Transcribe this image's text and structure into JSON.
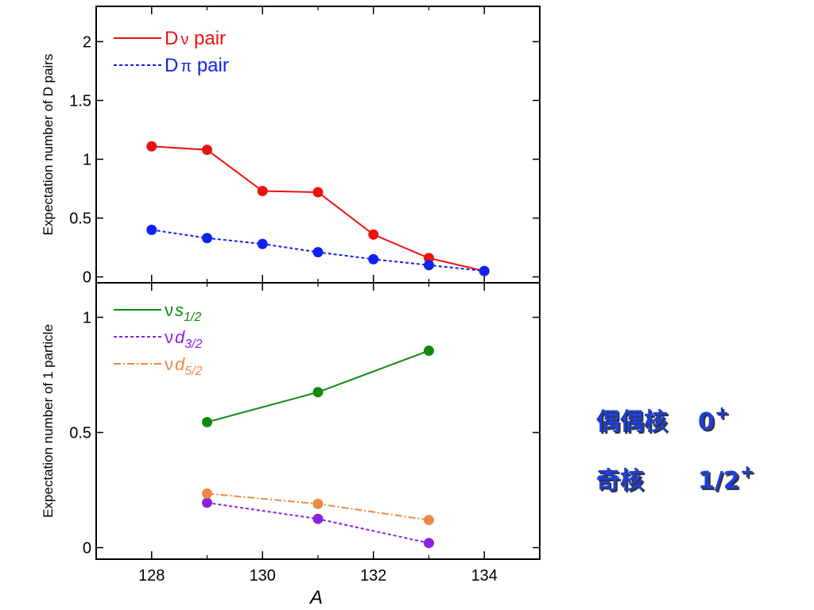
{
  "chart_data": [
    {
      "type": "line",
      "panel": "top",
      "ylabel": "Expectation number of D pairs",
      "xlim": [
        127,
        135
      ],
      "ylim": [
        -0.05,
        2.3
      ],
      "xticks": [
        128,
        130,
        132,
        134
      ],
      "yticks": [
        0,
        0.5,
        1,
        1.5,
        2
      ],
      "ytick_labels": [
        "0",
        "0.5",
        "1",
        "1.5",
        "2"
      ],
      "legend_position": "top-left",
      "series": [
        {
          "legend_prefix": "D",
          "legend_symbol": "ν",
          "legend_suffix": " pair",
          "color": "#ee1111",
          "line_style": "solid",
          "x": [
            128,
            129,
            130,
            131,
            132,
            133,
            134
          ],
          "y": [
            1.11,
            1.08,
            0.73,
            0.72,
            0.36,
            0.16,
            0.05
          ]
        },
        {
          "legend_prefix": "D",
          "legend_symbol": "π",
          "legend_suffix": " pair",
          "color": "#1122ee",
          "line_style": "dotted",
          "x": [
            128,
            129,
            130,
            131,
            132,
            133,
            134
          ],
          "y": [
            0.4,
            0.33,
            0.28,
            0.21,
            0.15,
            0.1,
            0.05
          ]
        }
      ]
    },
    {
      "type": "line",
      "panel": "bottom",
      "xlabel": "A",
      "ylabel": "Expectation number of 1 particle",
      "xlim": [
        127,
        135
      ],
      "ylim": [
        -0.05,
        1.15
      ],
      "xticks": [
        128,
        130,
        132,
        134
      ],
      "xtick_labels": [
        "128",
        "130",
        "132",
        "134"
      ],
      "yticks": [
        0,
        0.5,
        1
      ],
      "ytick_labels": [
        "0",
        "0.5",
        "1"
      ],
      "legend_position": "top-left",
      "series": [
        {
          "legend_symbol": "ν",
          "legend_orbital": "s",
          "legend_sub": "1/2",
          "color": "#118811",
          "line_style": "solid",
          "x": [
            129,
            131,
            133
          ],
          "y": [
            0.545,
            0.675,
            0.855
          ]
        },
        {
          "legend_symbol": "ν",
          "legend_orbital": "d",
          "legend_sub": "3/2",
          "color": "#8822dd",
          "line_style": "dotted",
          "x": [
            129,
            131,
            133
          ],
          "y": [
            0.195,
            0.125,
            0.02
          ]
        },
        {
          "legend_symbol": "ν",
          "legend_orbital": "d",
          "legend_sub": "5/2",
          "color": "#ee8844",
          "line_style": "dashdot",
          "x": [
            129,
            131,
            133
          ],
          "y": [
            0.235,
            0.19,
            0.12
          ]
        }
      ]
    }
  ],
  "notes": {
    "even_even": {
      "label": "偶偶核",
      "value": "0",
      "sup": "+"
    },
    "odd": {
      "label": "奇核",
      "value": "1/2",
      "sup": "+"
    }
  }
}
